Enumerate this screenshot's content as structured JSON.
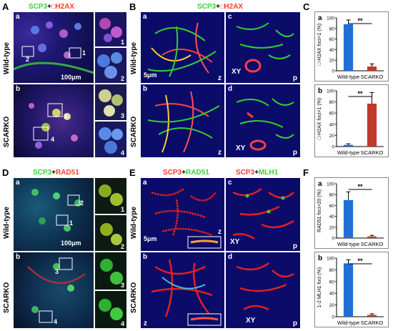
{
  "panels": {
    "A": {
      "letter": "A",
      "header_g": "SCP3",
      "header_plus": "+",
      "header_r": "H2AX",
      "header_box": "□",
      "row_top": "Wild-type",
      "row_bottom": "SCARKO",
      "sub_a": "a",
      "sub_b": "b",
      "scale": "100μm",
      "insets": [
        "1",
        "2",
        "3",
        "4"
      ],
      "box_labels": [
        "1",
        "2",
        "3",
        "4"
      ]
    },
    "B": {
      "letter": "B",
      "header_g": "SCP3",
      "header_plus": "+",
      "header_r": "H2AX",
      "header_box": "□",
      "row_top": "Wild-type",
      "row_bottom": "SCARKO",
      "subs": [
        "a",
        "b",
        "c",
        "d"
      ],
      "corners": [
        "z",
        "z",
        "p",
        "p"
      ],
      "scale": "5μm",
      "xy": "XY"
    },
    "C": {
      "letter": "C"
    },
    "D": {
      "letter": "D",
      "header_g": "SCP3",
      "header_plus": "+",
      "header_r": "RAD51",
      "row_top": "Wild-type",
      "row_bottom": "SCARKO",
      "sub_a": "a",
      "sub_b": "b",
      "scale": "100μm",
      "insets": [
        "1",
        "2",
        "3",
        "4"
      ],
      "box_labels": [
        "2",
        "1",
        "3",
        "4"
      ]
    },
    "E": {
      "letter": "E",
      "header1_r": "SCP3",
      "header1_plus": "+",
      "header1_g": "RAD51",
      "header2_r": "SCP3",
      "header2_plus": "+",
      "header2_g": "MLH1",
      "row_top": "Wild-type",
      "row_bottom": "SCARKO",
      "subs": [
        "a",
        "b",
        "c",
        "d"
      ],
      "corners": [
        "z",
        "z",
        "p",
        "p"
      ],
      "scale": "5μm",
      "xy": "XY"
    },
    "F": {
      "letter": "F"
    }
  },
  "chart_data": [
    {
      "type": "bar",
      "panel": "C",
      "sub": "a",
      "categories": [
        "Wild-type",
        "SCARKO"
      ],
      "values": [
        88,
        8
      ],
      "errors": [
        8,
        5
      ],
      "ylim": [
        0,
        100
      ],
      "yticks": [
        0,
        20,
        40,
        60,
        80,
        100
      ],
      "ylabel": "□-H2AX foci=1 (%)",
      "significance": "**",
      "colors": [
        "#1f6fd6",
        "#c0392b"
      ]
    },
    {
      "type": "bar",
      "panel": "C",
      "sub": "b",
      "categories": [
        "Wild-type",
        "SCARKO"
      ],
      "values": [
        3,
        77
      ],
      "errors": [
        2,
        20
      ],
      "ylim": [
        0,
        100
      ],
      "yticks": [
        0,
        20,
        40,
        60,
        80,
        100
      ],
      "ylabel": "□-H2AX foci>1 (%)",
      "significance": "**",
      "colors": [
        "#1f6fd6",
        "#c0392b"
      ]
    },
    {
      "type": "bar",
      "panel": "F",
      "sub": "a",
      "categories": [
        "Wild-type",
        "SCARKO"
      ],
      "values": [
        70,
        3
      ],
      "errors": [
        15,
        2
      ],
      "ylim": [
        0,
        100
      ],
      "yticks": [
        0,
        20,
        40,
        60,
        80,
        100
      ],
      "ylabel": "RAD51 foci>20 (%)",
      "significance": "**",
      "colors": [
        "#1f6fd6",
        "#c0392b"
      ]
    },
    {
      "type": "bar",
      "panel": "F",
      "sub": "b",
      "categories": [
        "Wild-type",
        "SCARKO"
      ],
      "values": [
        91,
        3
      ],
      "errors": [
        6,
        2
      ],
      "ylim": [
        0,
        100
      ],
      "yticks": [
        0,
        20,
        40,
        60,
        80,
        100
      ],
      "ylabel": "1-2 MLH1 foci (%)",
      "significance": "**",
      "colors": [
        "#1f6fd6",
        "#c0392b"
      ]
    }
  ]
}
